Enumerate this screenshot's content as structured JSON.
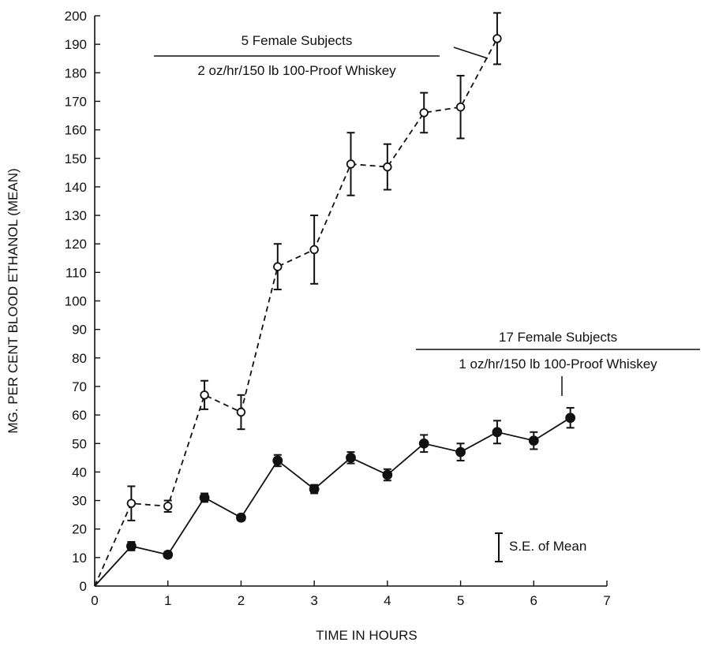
{
  "chart_data": {
    "type": "line",
    "xlabel": "TIME IN HOURS",
    "ylabel": "MG. PER CENT BLOOD ETHANOL (MEAN)",
    "xlim": [
      0,
      7
    ],
    "ylim": [
      0,
      200
    ],
    "x_ticks": [
      "0",
      "1",
      "2",
      "3",
      "4",
      "5",
      "6",
      "7"
    ],
    "y_ticks": [
      "0",
      "10",
      "20",
      "30",
      "40",
      "50",
      "60",
      "70",
      "80",
      "90",
      "100",
      "110",
      "120",
      "130",
      "140",
      "150",
      "160",
      "170",
      "180",
      "190",
      "200"
    ],
    "grid": false,
    "series": [
      {
        "line_style": "dashed",
        "marker": "open-circle",
        "label_lines": [
          "5 Female Subjects",
          "2 oz/hr/150 lb 100-Proof Whiskey"
        ],
        "points": [
          {
            "x": 0.0,
            "y": 0
          },
          {
            "x": 0.5,
            "y": 29,
            "se": 6
          },
          {
            "x": 1.0,
            "y": 28,
            "se": 2
          },
          {
            "x": 1.5,
            "y": 67,
            "se": 5
          },
          {
            "x": 2.0,
            "y": 61,
            "se": 6
          },
          {
            "x": 2.5,
            "y": 112,
            "se": 8
          },
          {
            "x": 3.0,
            "y": 118,
            "se": 12
          },
          {
            "x": 3.5,
            "y": 148,
            "se": 11
          },
          {
            "x": 4.0,
            "y": 147,
            "se": 8
          },
          {
            "x": 4.5,
            "y": 166,
            "se": 7
          },
          {
            "x": 5.0,
            "y": 168,
            "se": 11
          },
          {
            "x": 5.5,
            "y": 192,
            "se": 9
          }
        ]
      },
      {
        "line_style": "solid",
        "marker": "filled-circle",
        "label_lines": [
          "17 Female Subjects",
          "1 oz/hr/150 lb 100-Proof Whiskey"
        ],
        "points": [
          {
            "x": 0.0,
            "y": 0
          },
          {
            "x": 0.5,
            "y": 14,
            "se": 1.5
          },
          {
            "x": 1.0,
            "y": 11,
            "se": 1
          },
          {
            "x": 1.5,
            "y": 31,
            "se": 1.5
          },
          {
            "x": 2.0,
            "y": 24,
            "se": 1
          },
          {
            "x": 2.5,
            "y": 44,
            "se": 2
          },
          {
            "x": 3.0,
            "y": 34,
            "se": 1.5
          },
          {
            "x": 3.5,
            "y": 45,
            "se": 2
          },
          {
            "x": 4.0,
            "y": 39,
            "se": 2
          },
          {
            "x": 4.5,
            "y": 50,
            "se": 3
          },
          {
            "x": 5.0,
            "y": 47,
            "se": 3
          },
          {
            "x": 5.5,
            "y": 54,
            "se": 4
          },
          {
            "x": 6.0,
            "y": 51,
            "se": 3
          },
          {
            "x": 6.5,
            "y": 59,
            "se": 3.5
          }
        ]
      }
    ],
    "se_key_label": "S.E. of Mean"
  }
}
